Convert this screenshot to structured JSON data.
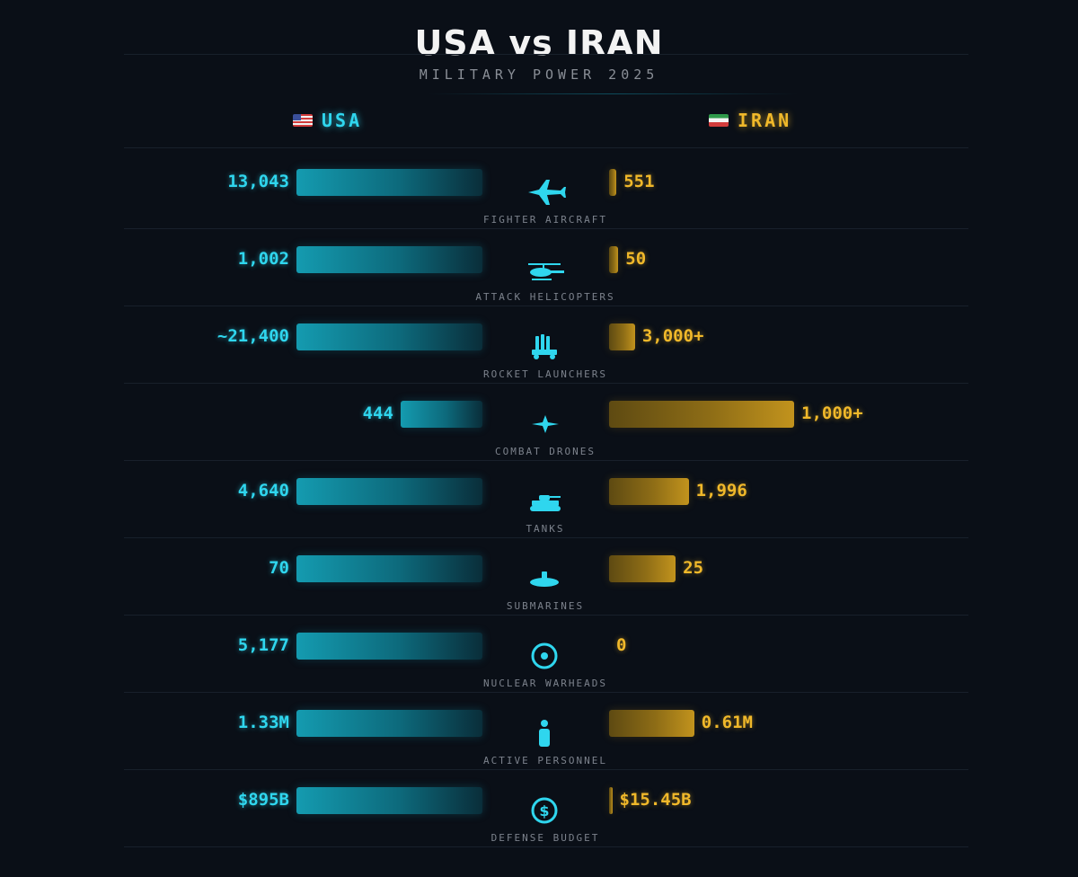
{
  "chart_data": {
    "type": "bar",
    "title": "USA vs IRAN",
    "subtitle": "MILITARY POWER 2025",
    "series": [
      {
        "name": "USA",
        "flag": "us-flag-icon",
        "color": "#2fd6ee",
        "labels": [
          "13,043",
          "1,002",
          "~21,400",
          "444",
          "4,640",
          "70",
          "5,177",
          "1.33M",
          "$895B"
        ],
        "values": [
          13043,
          1002,
          21400,
          444,
          4640,
          70,
          5177,
          1330000,
          895
        ]
      },
      {
        "name": "IRAN",
        "flag": "iran-flag-icon",
        "color": "#f0b82a",
        "labels": [
          "551",
          "50",
          "3,000+",
          "1,000+",
          "1,996",
          "25",
          "0",
          "0.61M",
          "$15.45B"
        ],
        "values": [
          551,
          50,
          3000,
          1000,
          1996,
          25,
          0,
          610000,
          15.45
        ]
      }
    ],
    "categories": [
      {
        "label": "FIGHTER AIRCRAFT",
        "icon": "fighter-jet-icon",
        "usa_fraction": 1.0,
        "iran_fraction": 0.04
      },
      {
        "label": "ATTACK HELICOPTERS",
        "icon": "helicopter-icon",
        "usa_fraction": 1.0,
        "iran_fraction": 0.05
      },
      {
        "label": "ROCKET LAUNCHERS",
        "icon": "rocket-launcher-icon",
        "usa_fraction": 1.0,
        "iran_fraction": 0.14
      },
      {
        "label": "COMBAT DRONES",
        "icon": "drone-icon",
        "usa_fraction": 0.44,
        "iran_fraction": 1.0
      },
      {
        "label": "TANKS",
        "icon": "tank-icon",
        "usa_fraction": 1.0,
        "iran_fraction": 0.43
      },
      {
        "label": "SUBMARINES",
        "icon": "submarine-icon",
        "usa_fraction": 1.0,
        "iran_fraction": 0.36
      },
      {
        "label": "NUCLEAR WARHEADS",
        "icon": "nuclear-icon",
        "usa_fraction": 1.0,
        "iran_fraction": 0.0
      },
      {
        "label": "ACTIVE PERSONNEL",
        "icon": "personnel-icon",
        "usa_fraction": 1.0,
        "iran_fraction": 0.46
      },
      {
        "label": "DEFENSE BUDGET",
        "icon": "dollar-icon",
        "usa_fraction": 1.0,
        "iran_fraction": 0.017
      }
    ],
    "grid": false,
    "legend": "top"
  }
}
